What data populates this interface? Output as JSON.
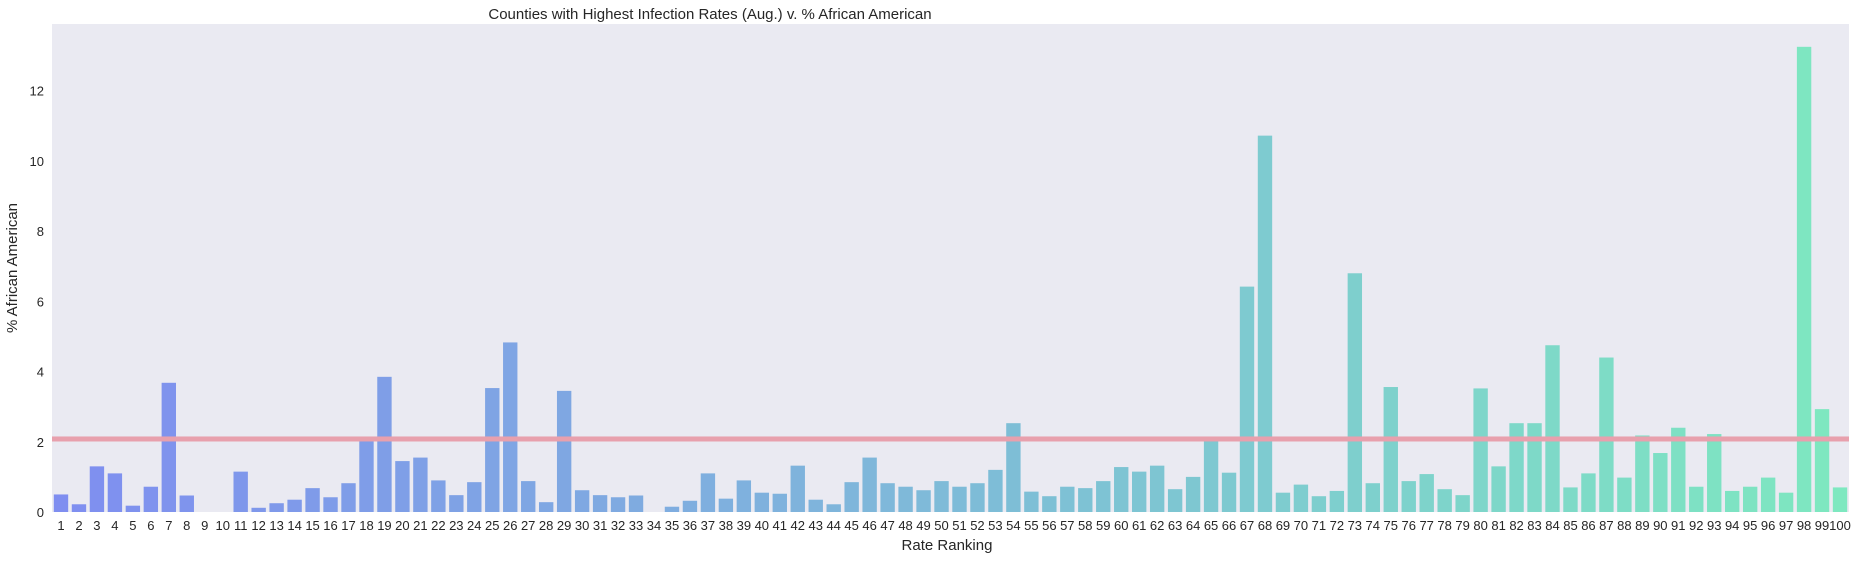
{
  "chart_data": {
    "type": "bar",
    "title": "Counties with Highest Infection Rates (Aug.) v. % African American",
    "xlabel": "Rate Ranking",
    "ylabel": "% African American",
    "ylim": [
      0,
      13.9
    ],
    "yticks": [
      0,
      2,
      4,
      6,
      8,
      10,
      12
    ],
    "grid": false,
    "background_color": "#eaeaf2",
    "reference_line": {
      "value": 2.08,
      "color": "#e8a0ad"
    },
    "color_start": "#7f8ef0",
    "color_end": "#7ee8c0",
    "categories": [
      "1",
      "2",
      "3",
      "4",
      "5",
      "6",
      "7",
      "8",
      "9",
      "10",
      "11",
      "12",
      "13",
      "14",
      "15",
      "16",
      "17",
      "18",
      "19",
      "20",
      "21",
      "22",
      "23",
      "24",
      "25",
      "26",
      "27",
      "28",
      "29",
      "30",
      "31",
      "32",
      "33",
      "34",
      "35",
      "36",
      "37",
      "38",
      "39",
      "40",
      "41",
      "42",
      "43",
      "44",
      "45",
      "46",
      "47",
      "48",
      "49",
      "50",
      "51",
      "52",
      "53",
      "54",
      "55",
      "56",
      "57",
      "58",
      "59",
      "60",
      "61",
      "62",
      "63",
      "64",
      "65",
      "66",
      "67",
      "68",
      "69",
      "70",
      "71",
      "72",
      "73",
      "74",
      "75",
      "76",
      "77",
      "78",
      "79",
      "80",
      "81",
      "82",
      "83",
      "84",
      "85",
      "86",
      "87",
      "88",
      "89",
      "90",
      "91",
      "92",
      "93",
      "94",
      "95",
      "96",
      "97",
      "98",
      "99",
      "100"
    ],
    "values": [
      0.5,
      0.22,
      1.3,
      1.1,
      0.18,
      0.72,
      3.68,
      0.47,
      0,
      0,
      1.15,
      0.12,
      0.25,
      0.35,
      0.68,
      0.42,
      0.82,
      2.07,
      3.85,
      1.45,
      1.55,
      0.9,
      0.48,
      0.85,
      3.53,
      4.83,
      0.88,
      0.28,
      3.45,
      0.62,
      0.48,
      0.42,
      0.47,
      0,
      0.15,
      0.32,
      1.1,
      0.38,
      0.9,
      0.55,
      0.52,
      1.32,
      0.35,
      0.22,
      0.85,
      1.55,
      0.82,
      0.72,
      0.62,
      0.88,
      0.72,
      0.82,
      1.2,
      2.53,
      0.58,
      0.45,
      0.72,
      0.68,
      0.88,
      1.28,
      1.15,
      1.32,
      0.65,
      1.0,
      2.1,
      1.12,
      6.42,
      10.72,
      0.55,
      0.78,
      0.45,
      0.6,
      6.8,
      0.82,
      3.56,
      0.88,
      1.08,
      0.65,
      0.48,
      3.52,
      1.3,
      2.53,
      2.53,
      4.75,
      0.7,
      1.1,
      4.4,
      0.98,
      2.18,
      1.68,
      2.4,
      0.72,
      2.22,
      0.6,
      0.72,
      0.98,
      0.55,
      13.25,
      2.93,
      0.7
    ]
  }
}
